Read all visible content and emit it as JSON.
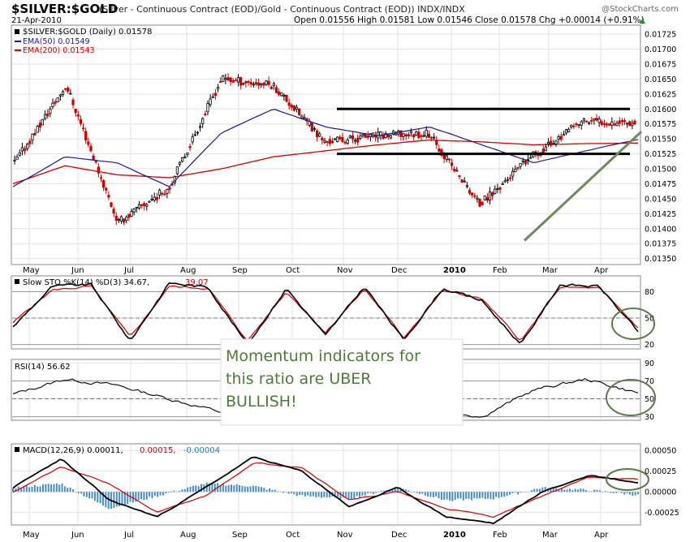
{
  "header": {
    "symbol": "$SILVER:$GOLD",
    "description": "(Silver - Continuous Contract (EOD)/Gold - Continuous Contract (EOD)) INDX/INDX",
    "watermark": "@StockCharts.com",
    "date": "21-Apr-2010",
    "quote": "Open 0.01556  High 0.01581  Low 0.01546  Close 0.01578  Chg +0.00014 (+0.91%)",
    "quote_marker": "▲"
  },
  "legend": {
    "main": "$SILVER:$GOLD (Daily) 0.01578",
    "ema50": "EMA(50) 0.01549",
    "ema200": "EMA(200) 0.01543"
  },
  "panels": {
    "sto_label_black": "Slow STO %K(14) %D(3) 34.67,",
    "sto_label_red": "39.07",
    "rsi_label": "RSI(14) 56.62",
    "macd_label_black": "MACD(12,26,9) 0.00011,",
    "macd_label_red": "0.00015,",
    "macd_label_blue": "-0.00004"
  },
  "annotation": "Momentum indicators for this ratio are UBER BULLISH!",
  "annotation_lines": [
    "Momentum indicators for",
    "this ratio are UBER",
    "BULLISH!"
  ],
  "month_labels": [
    "May",
    "Jun",
    "Jul",
    "Aug",
    "Sep",
    "Oct",
    "Nov",
    "Dec",
    "2010",
    "Feb",
    "Mar",
    "Apr"
  ],
  "colors": {
    "up": "#000000",
    "down": "#cc0000",
    "ema50": "#1a1a8c",
    "ema200": "#cc0000",
    "trendline": "#6e8a5c",
    "annotation": "#4e7a3a",
    "histogram": "#4a8fc4"
  },
  "chart_data": [
    {
      "type": "line",
      "title": "$SILVER:$GOLD (Daily) 0.01578",
      "ylim": [
        0.0134,
        0.0174
      ],
      "yticks": [
        "0.01350",
        "0.01375",
        "0.01400",
        "0.01425",
        "0.01450",
        "0.01475",
        "0.01500",
        "0.01525",
        "0.01550",
        "0.01575",
        "0.01600",
        "0.01625",
        "0.01650",
        "0.01675",
        "0.01700",
        "0.01725"
      ],
      "x": [
        "May",
        "Jun",
        "Jul",
        "Aug",
        "Sep",
        "Oct",
        "Nov",
        "Dec",
        "2010",
        "Feb",
        "Mar",
        "Apr",
        "Apr-21"
      ],
      "series": [
        {
          "name": "$SILVER:$GOLD",
          "values": [
            0.0151,
            0.0164,
            0.0141,
            0.0147,
            0.0165,
            0.0164,
            0.01545,
            0.01555,
            0.0156,
            0.0144,
            0.0152,
            0.0158,
            0.01578
          ]
        },
        {
          "name": "EMA(50) 0.01549",
          "values": [
            0.0147,
            0.0152,
            0.0151,
            0.0147,
            0.0156,
            0.016,
            0.0157,
            0.01555,
            0.0157,
            0.0154,
            0.0151,
            0.0153,
            0.01549
          ]
        },
        {
          "name": "EMA(200) 0.01543",
          "values": [
            0.01475,
            0.01505,
            0.0149,
            0.01485,
            0.015,
            0.0152,
            0.0153,
            0.0154,
            0.01548,
            0.01545,
            0.0154,
            0.01542,
            0.01543
          ]
        }
      ],
      "annotations": [
        "resistance line 0.01600",
        "support line 0.01525",
        "rising trendline"
      ]
    },
    {
      "type": "line",
      "title": "Slow STO %K(14) %D(3) 34.67, 39.07",
      "ylim": [
        15,
        98
      ],
      "yticks": [
        "20",
        "50",
        "80"
      ],
      "series": [
        {
          "name": "%K",
          "values": [
            40,
            86,
            88,
            24,
            90,
            85,
            20,
            84,
            30,
            86,
            25,
            84,
            70,
            20,
            88,
            86,
            34.67
          ]
        },
        {
          "name": "%D",
          "values": [
            45,
            82,
            86,
            28,
            86,
            84,
            24,
            80,
            34,
            83,
            28,
            81,
            72,
            24,
            85,
            84,
            39.07
          ]
        }
      ]
    },
    {
      "type": "line",
      "title": "RSI(14) 56.62",
      "ylim": [
        26,
        94
      ],
      "yticks": [
        "30",
        "50",
        "70",
        "90"
      ],
      "series": [
        {
          "name": "RSI",
          "values": [
            55,
            72,
            65,
            50,
            35,
            68,
            58,
            55,
            40,
            30,
            60,
            72,
            56.62
          ]
        }
      ]
    },
    {
      "type": "line",
      "title": "MACD(12,26,9) 0.00011, 0.00015, -0.00004",
      "ylim": [
        -0.0004,
        0.00058
      ],
      "yticks": [
        "-0.00025",
        "0.00000",
        "0.00025",
        "0.00050"
      ],
      "series": [
        {
          "name": "MACD",
          "values": [
            5e-05,
            0.0004,
            -0.0001,
            -0.0003,
            5e-05,
            0.00042,
            0.00025,
            -0.00018,
            5e-05,
            -0.0003,
            -0.00038,
            0.0,
            0.0002,
            0.00011
          ]
        },
        {
          "name": "Signal",
          "values": [
            0.0,
            0.0003,
            0.0001,
            -0.00025,
            -5e-05,
            0.00035,
            0.0003,
            -0.0001,
            0.0,
            -0.0002,
            -0.0003,
            -5e-05,
            0.00018,
            0.00015
          ]
        },
        {
          "name": "Histogram",
          "values": [
            5e-05,
            0.0001,
            -0.0002,
            -5e-05,
            0.0001,
            7e-05,
            -5e-05,
            -8e-05,
            5e-05,
            -0.0001,
            -8e-05,
            5e-05,
            2e-05,
            -4e-05
          ]
        }
      ]
    }
  ]
}
